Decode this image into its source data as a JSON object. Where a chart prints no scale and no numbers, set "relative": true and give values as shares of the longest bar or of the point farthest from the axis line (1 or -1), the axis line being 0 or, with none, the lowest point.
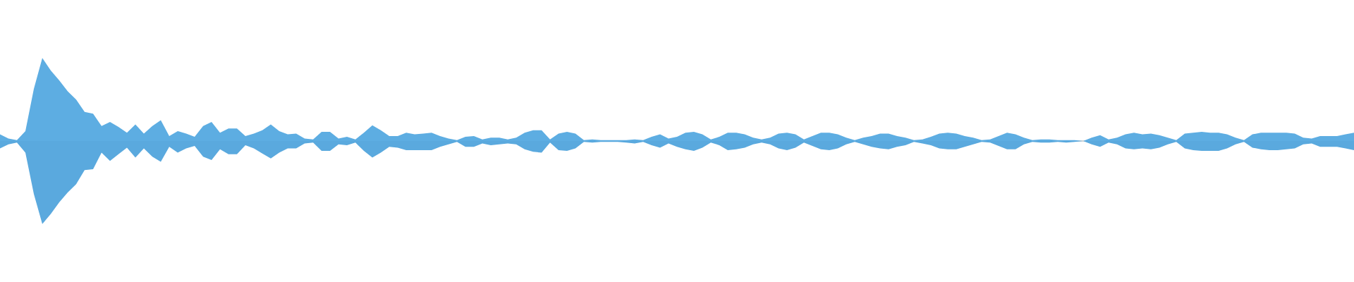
{
  "chart_data": {
    "type": "area",
    "relative": true,
    "tick_labels": false,
    "categories": [
      null,
      null,
      null,
      null,
      null,
      null,
      null,
      null,
      null,
      null,
      null,
      null,
      null,
      null,
      null,
      null,
      null,
      null,
      null,
      null,
      null,
      null,
      null,
      null,
      null,
      null,
      null,
      null,
      null,
      null,
      null,
      null,
      null,
      null,
      null,
      null,
      null,
      null,
      null,
      null,
      null,
      null,
      null,
      null,
      null,
      null,
      null,
      null,
      null,
      null,
      null,
      null,
      null,
      null,
      null,
      null,
      null,
      null,
      null,
      null,
      null,
      null,
      null,
      null,
      null,
      null,
      null,
      null,
      null,
      null,
      null,
      null,
      null,
      null,
      null,
      null,
      null,
      null,
      null,
      null,
      null,
      null,
      null,
      null,
      null,
      null,
      null,
      null,
      null,
      null,
      null,
      null,
      null,
      null,
      null,
      null,
      null,
      null,
      null,
      null,
      null,
      null,
      null,
      null,
      null,
      null,
      null,
      null,
      null,
      null,
      null,
      null,
      null,
      null,
      null,
      null,
      null,
      null,
      null,
      null,
      null,
      null,
      null,
      null,
      null,
      null,
      null,
      null,
      null,
      null,
      null,
      null,
      null,
      null,
      null,
      null,
      null,
      null,
      null,
      null,
      null,
      null,
      null,
      null,
      null,
      null,
      null,
      null,
      null,
      null,
      null,
      null,
      null,
      null,
      null,
      null,
      null,
      null,
      null,
      null,
      null
    ],
    "series": [
      {
        "color": "#5dade2",
        "values": [
          0.08,
          0.03,
          0.01,
          0.12,
          0.63,
          1.0,
          0.85,
          0.73,
          0.6,
          0.5,
          0.35,
          0.33,
          0.18,
          0.23,
          0.17,
          0.1,
          0.2,
          0.09,
          0.18,
          0.25,
          0.06,
          0.12,
          0.09,
          0.05,
          0.18,
          0.23,
          0.1,
          0.15,
          0.15,
          0.06,
          0.09,
          0.13,
          0.2,
          0.12,
          0.08,
          0.09,
          0.03,
          0.02,
          0.11,
          0.11,
          0.03,
          0.05,
          0.02,
          0.1,
          0.19,
          0.13,
          0.06,
          0.06,
          0.1,
          0.08,
          0.09,
          0.1,
          0.06,
          0.03,
          0.01,
          0.05,
          0.06,
          0.02,
          0.04,
          0.04,
          0.02,
          0.04,
          0.1,
          0.13,
          0.13,
          0.02,
          0.09,
          0.11,
          0.09,
          0.01,
          0.02,
          0.01,
          0.01,
          0.01,
          0.01,
          0.02,
          0.01,
          0.05,
          0.08,
          0.03,
          0.05,
          0.1,
          0.11,
          0.08,
          0.02,
          0.05,
          0.1,
          0.1,
          0.08,
          0.04,
          0.02,
          0.04,
          0.09,
          0.1,
          0.08,
          0.02,
          0.06,
          0.1,
          0.1,
          0.08,
          0.04,
          0.01,
          0.04,
          0.06,
          0.09,
          0.09,
          0.06,
          0.04,
          0.01,
          0.02,
          0.05,
          0.09,
          0.1,
          0.09,
          0.06,
          0.04,
          0.01,
          0.02,
          0.06,
          0.1,
          0.08,
          0.04,
          0.01,
          0.02,
          0.02,
          0.01,
          0.01,
          0.01,
          0,
          0.04,
          0.07,
          0.02,
          0.04,
          0.08,
          0.1,
          0.08,
          0.09,
          0.07,
          0.04,
          0.01,
          0.09,
          0.1,
          0.11,
          0.1,
          0.1,
          0.08,
          0.04,
          0.01,
          0.08,
          0.1,
          0.1,
          0.1,
          0.1,
          0.09,
          0.04,
          0.03,
          0.06,
          0.06,
          0.06,
          0.08,
          0.1
        ]
      },
      {
        "color": "#5aa9de",
        "values": [
          -0.09,
          -0.04,
          -0.02,
          -0.14,
          -0.64,
          -1.0,
          -0.88,
          -0.74,
          -0.62,
          -0.52,
          -0.35,
          -0.34,
          -0.14,
          -0.24,
          -0.16,
          -0.08,
          -0.2,
          -0.09,
          -0.19,
          -0.25,
          -0.07,
          -0.14,
          -0.09,
          -0.06,
          -0.19,
          -0.23,
          -0.1,
          -0.16,
          -0.16,
          -0.05,
          -0.09,
          -0.15,
          -0.21,
          -0.14,
          -0.09,
          -0.09,
          -0.03,
          -0.02,
          -0.12,
          -0.12,
          -0.04,
          -0.05,
          -0.02,
          -0.12,
          -0.2,
          -0.14,
          -0.07,
          -0.08,
          -0.11,
          -0.11,
          -0.11,
          -0.11,
          -0.07,
          -0.04,
          -0.01,
          -0.07,
          -0.07,
          -0.03,
          -0.05,
          -0.04,
          -0.03,
          -0.04,
          -0.1,
          -0.13,
          -0.14,
          -0.02,
          -0.11,
          -0.12,
          -0.09,
          -0.01,
          -0.02,
          -0.01,
          -0.01,
          -0.01,
          -0.02,
          -0.03,
          -0.01,
          -0.05,
          -0.08,
          -0.03,
          -0.07,
          -0.1,
          -0.12,
          -0.08,
          -0.02,
          -0.05,
          -0.11,
          -0.1,
          -0.08,
          -0.04,
          -0.02,
          -0.04,
          -0.09,
          -0.11,
          -0.08,
          -0.02,
          -0.06,
          -0.1,
          -0.11,
          -0.09,
          -0.04,
          -0.01,
          -0.04,
          -0.07,
          -0.09,
          -0.1,
          -0.07,
          -0.05,
          -0.01,
          -0.03,
          -0.05,
          -0.09,
          -0.1,
          -0.1,
          -0.07,
          -0.04,
          -0.01,
          -0.02,
          -0.06,
          -0.1,
          -0.1,
          -0.04,
          -0.01,
          -0.02,
          -0.02,
          -0.01,
          -0.02,
          -0.01,
          0,
          -0.04,
          -0.07,
          -0.02,
          -0.04,
          -0.09,
          -0.1,
          -0.09,
          -0.1,
          -0.08,
          -0.04,
          -0.01,
          -0.09,
          -0.11,
          -0.12,
          -0.12,
          -0.12,
          -0.09,
          -0.04,
          -0.01,
          -0.08,
          -0.1,
          -0.11,
          -0.11,
          -0.1,
          -0.09,
          -0.04,
          -0.03,
          -0.07,
          -0.07,
          -0.07,
          -0.09,
          -0.11
        ]
      }
    ]
  }
}
